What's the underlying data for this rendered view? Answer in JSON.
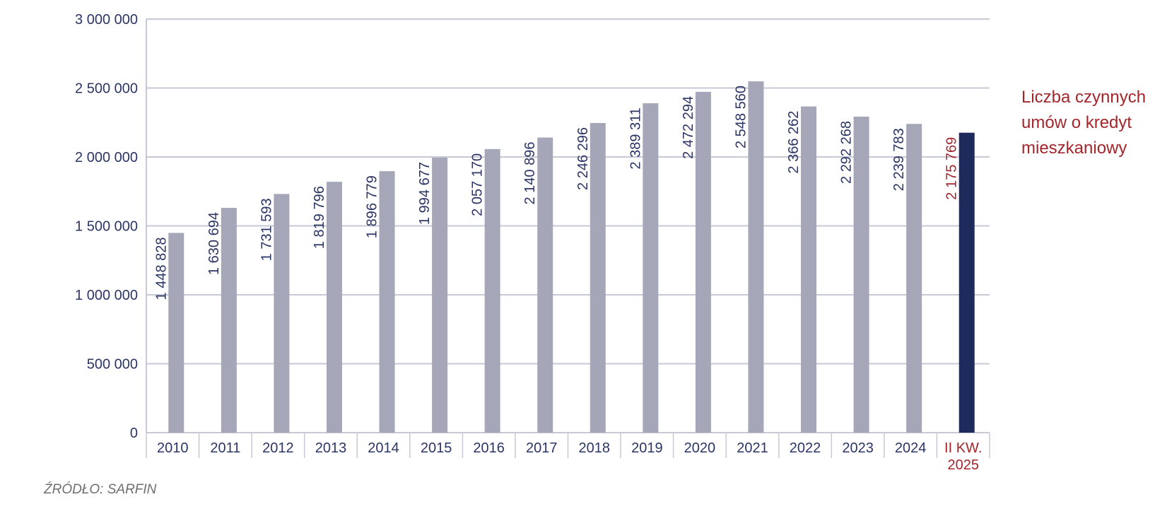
{
  "chart_data": {
    "type": "bar",
    "categories": [
      "2010",
      "2011",
      "2012",
      "2013",
      "2014",
      "2015",
      "2016",
      "2017",
      "2018",
      "2019",
      "2020",
      "2021",
      "2022",
      "2023",
      "2024",
      "II KW. 2025"
    ],
    "values": [
      1448828,
      1630694,
      1731593,
      1819796,
      1896779,
      1994677,
      2057170,
      2140896,
      2246296,
      2389311,
      2472294,
      2548560,
      2366262,
      2292268,
      2239783,
      2175769
    ],
    "value_labels": [
      "1 448 828",
      "1 630 694",
      "1 731 593",
      "1 819 796",
      "1 896 779",
      "1 994 677",
      "2 057 170",
      "2 140 896",
      "2 246 296",
      "2 389 311",
      "2 472 294",
      "2 548 560",
      "2 366 262",
      "2 292 268",
      "2 239 783",
      "2 175 769"
    ],
    "yticks": [
      0,
      500000,
      1000000,
      1500000,
      2000000,
      2500000,
      3000000
    ],
    "ytick_labels": [
      "0",
      "500 000",
      "1 000 000",
      "1 500 000",
      "2 000 000",
      "2 500 000",
      "3 000 000"
    ],
    "ylim": [
      0,
      3000000
    ],
    "grid": true,
    "legend_text": "Liczba czynnych umów o kredyt mieszkaniowy",
    "legend_position": "right",
    "source": "ŹRÓDŁO: SARFIN",
    "highlight_index": 15,
    "colors": {
      "bar": "#a5a7b8",
      "bar_highlight": "#1f2a5c",
      "label": "#2b3566",
      "highlight_text": "#a3262b",
      "grid": "#c7c9d6",
      "source": "#6f6f73"
    }
  }
}
